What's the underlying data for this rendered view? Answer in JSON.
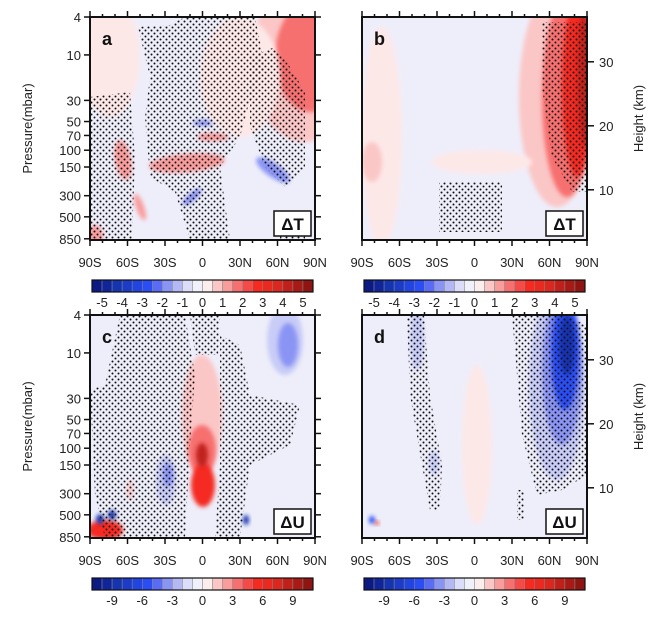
{
  "chart_data": [
    {
      "type": "heatmap",
      "panel": "a",
      "variable_label": "ΔT",
      "x_ticks": [
        "90S",
        "60S",
        "30S",
        "0",
        "30N",
        "60N",
        "90N"
      ],
      "y_axis": "pressure",
      "ylabel": "Pressure(mbar)",
      "y_ticks": [
        "4",
        "10",
        "30",
        "50",
        "70",
        "100",
        "150",
        "300",
        "500",
        "850"
      ],
      "y_scale": "log",
      "ylim": [
        850,
        4
      ],
      "stippling": true,
      "colorbar_labels": [
        "-5",
        "-4",
        "-3",
        "-2",
        "-1",
        "0",
        "1",
        "2",
        "3",
        "4",
        "5"
      ]
    },
    {
      "type": "heatmap",
      "panel": "b",
      "variable_label": "ΔT",
      "x_ticks": [
        "90S",
        "60S",
        "30S",
        "0",
        "30N",
        "60N",
        "90N"
      ],
      "y_axis": "height",
      "ylabel": "Height (km)",
      "y_ticks": [
        "10",
        "20",
        "30"
      ],
      "stippling": true,
      "colorbar_labels": [
        "-5",
        "-4",
        "-3",
        "-2",
        "-1",
        "0",
        "1",
        "2",
        "3",
        "4",
        "5"
      ]
    },
    {
      "type": "heatmap",
      "panel": "c",
      "variable_label": "ΔU",
      "x_ticks": [
        "90S",
        "60S",
        "30S",
        "0",
        "30N",
        "60N",
        "90N"
      ],
      "y_axis": "pressure",
      "ylabel": "Pressure(mbar)",
      "y_ticks": [
        "4",
        "10",
        "30",
        "50",
        "70",
        "100",
        "150",
        "300",
        "500",
        "850"
      ],
      "y_scale": "log",
      "ylim": [
        850,
        4
      ],
      "stippling": true,
      "colorbar_labels": [
        "-9",
        "-6",
        "-3",
        "0",
        "3",
        "6",
        "9"
      ]
    },
    {
      "type": "heatmap",
      "panel": "d",
      "variable_label": "ΔU",
      "x_ticks": [
        "90S",
        "60S",
        "30S",
        "0",
        "30N",
        "60N",
        "90N"
      ],
      "y_axis": "height",
      "ylabel": "Height (km)",
      "y_ticks": [
        "10",
        "20",
        "30"
      ],
      "stippling": true,
      "colorbar_labels": [
        "-9",
        "-6",
        "-3",
        "0",
        "3",
        "6",
        "9"
      ]
    }
  ],
  "colorbar_colors": [
    "#0c1a86",
    "#10259a",
    "#1633b0",
    "#1c3cc8",
    "#2244e0",
    "#2b4ef4",
    "#5a6cf4",
    "#8a94f4",
    "#b4b9f6",
    "#dcdef9",
    "#f1f1fb",
    "#fdeeee",
    "#fbc6c6",
    "#f99c9c",
    "#f77070",
    "#f54a48",
    "#f52a20",
    "#ea2a20",
    "#d8281f",
    "#c0201b",
    "#a81a16",
    "#8e1512"
  ]
}
